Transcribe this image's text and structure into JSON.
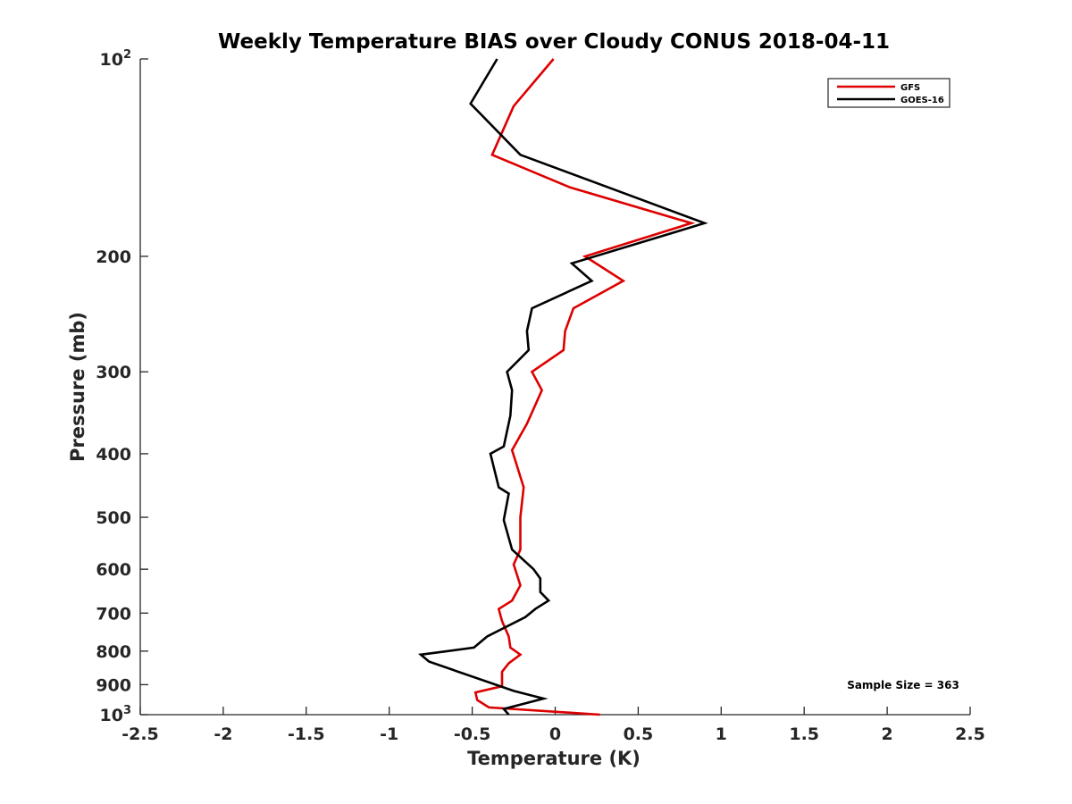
{
  "chart_data": {
    "type": "line",
    "title": "Weekly Temperature BIAS over Cloudy CONUS 2018-04-11",
    "xlabel": "Temperature (K)",
    "ylabel": "Pressure (mb)",
    "xlim": [
      -2.5,
      2.5
    ],
    "ylim": [
      100,
      1000
    ],
    "y_scale": "log",
    "y_reversed": true,
    "x_ticks": [
      -2.5,
      -2,
      -1.5,
      -1,
      -0.5,
      0,
      0.5,
      1,
      1.5,
      2,
      2.5
    ],
    "x_tick_labels": [
      "-2.5",
      "-2",
      "-1.5",
      "-1",
      "-0.5",
      "0",
      "0.5",
      "1",
      "1.5",
      "2",
      "2.5"
    ],
    "y_ticks": [
      {
        "value": 100,
        "base": "10",
        "exp": "2"
      },
      {
        "value": 200,
        "label": "200"
      },
      {
        "value": 300,
        "label": "300"
      },
      {
        "value": 400,
        "label": "400"
      },
      {
        "value": 500,
        "label": "500"
      },
      {
        "value": 600,
        "label": "600"
      },
      {
        "value": 700,
        "label": "700"
      },
      {
        "value": 800,
        "label": "800"
      },
      {
        "value": 900,
        "label": "900"
      },
      {
        "value": 1000,
        "base": "10",
        "exp": "3"
      }
    ],
    "grid": false,
    "legend_position": "top-right",
    "annotation": "Sample Size = 363",
    "series": [
      {
        "name": "GFS",
        "color": "#dd0000",
        "x": [
          -0.01,
          -0.25,
          -0.38,
          0.09,
          0.82,
          0.18,
          0.41,
          0.11,
          0.06,
          0.05,
          -0.14,
          -0.08,
          -0.17,
          -0.26,
          -0.19,
          -0.21,
          -0.21,
          -0.25,
          -0.21,
          -0.26,
          -0.34,
          -0.32,
          -0.28,
          -0.27,
          -0.21,
          -0.28,
          -0.32,
          -0.32,
          -0.48,
          -0.47,
          -0.4,
          0.27
        ],
        "y": [
          100,
          118,
          140,
          157,
          178,
          200,
          218,
          240,
          260,
          278,
          300,
          320,
          360,
          395,
          450,
          500,
          560,
          590,
          635,
          670,
          690,
          720,
          760,
          790,
          810,
          835,
          860,
          905,
          925,
          950,
          975,
          1000
        ]
      },
      {
        "name": "GOES-16",
        "color": "#000000",
        "x": [
          -0.35,
          -0.51,
          -0.21,
          0.35,
          0.9,
          0.1,
          0.22,
          -0.14,
          -0.17,
          -0.16,
          -0.29,
          -0.26,
          -0.27,
          -0.31,
          -0.39,
          -0.34,
          -0.28,
          -0.31,
          -0.26,
          -0.13,
          -0.09,
          -0.09,
          -0.04,
          -0.12,
          -0.18,
          -0.41,
          -0.49,
          -0.81,
          -0.76,
          -0.25,
          -0.07,
          -0.31,
          -0.28
        ],
        "y": [
          100,
          117,
          140,
          158,
          178,
          205,
          218,
          240,
          260,
          278,
          300,
          320,
          350,
          390,
          400,
          450,
          460,
          505,
          560,
          600,
          620,
          650,
          670,
          690,
          710,
          760,
          790,
          810,
          830,
          920,
          945,
          980,
          1000
        ]
      }
    ]
  }
}
